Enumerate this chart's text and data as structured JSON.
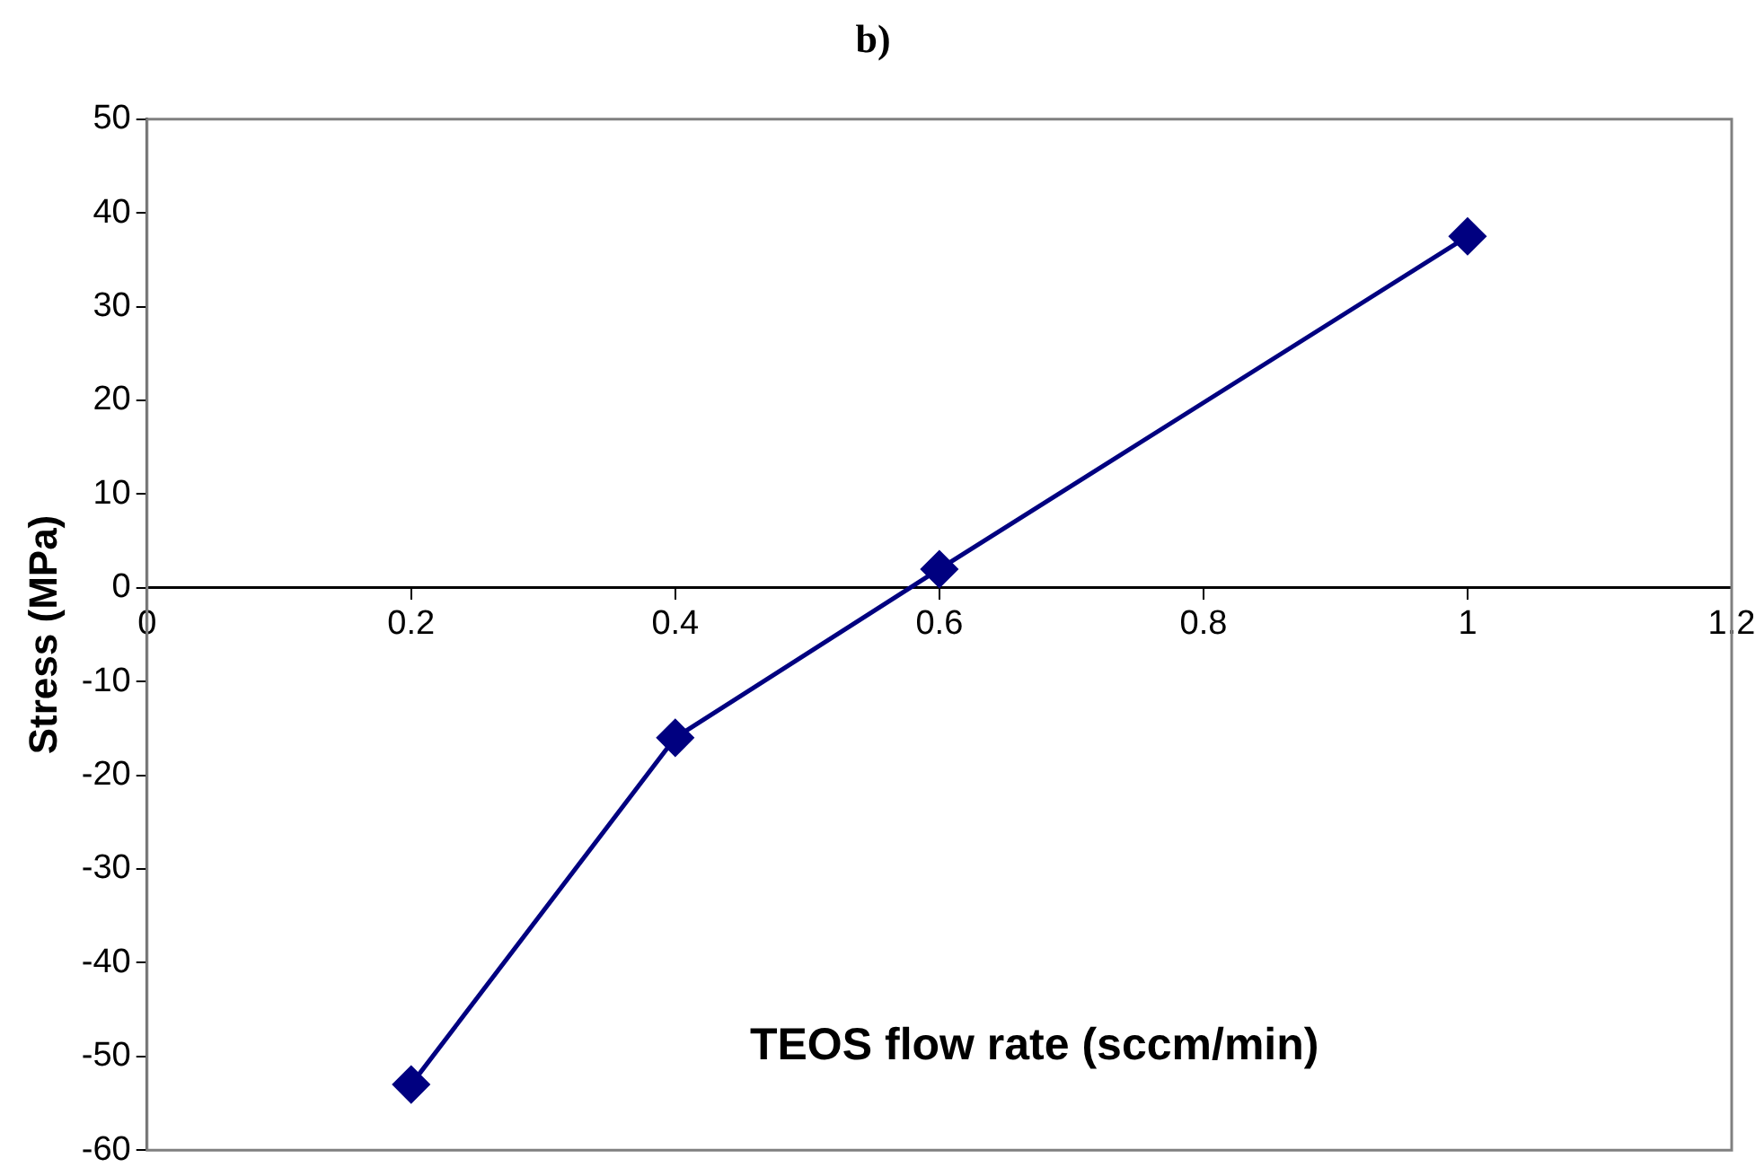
{
  "chart_data": {
    "type": "line",
    "title": "b)",
    "xlabel": "TEOS flow rate (sccm/min)",
    "ylabel": "Stress (MPa)",
    "x": [
      0.2,
      0.4,
      0.6,
      1.0
    ],
    "series": [
      {
        "color": "#000080",
        "values": [
          -53,
          -16,
          2,
          37.5
        ]
      }
    ],
    "xlim": [
      0,
      1.2
    ],
    "xticks": [
      0,
      0.2,
      0.4,
      0.6,
      0.8,
      1,
      1.2
    ],
    "ylim": [
      -60,
      50
    ],
    "yticks": [
      -60,
      -50,
      -40,
      -30,
      -20,
      -10,
      0,
      10,
      20,
      30,
      40,
      50
    ],
    "grid": false,
    "legend": false,
    "marker": "diamond",
    "line_style": "solid"
  }
}
